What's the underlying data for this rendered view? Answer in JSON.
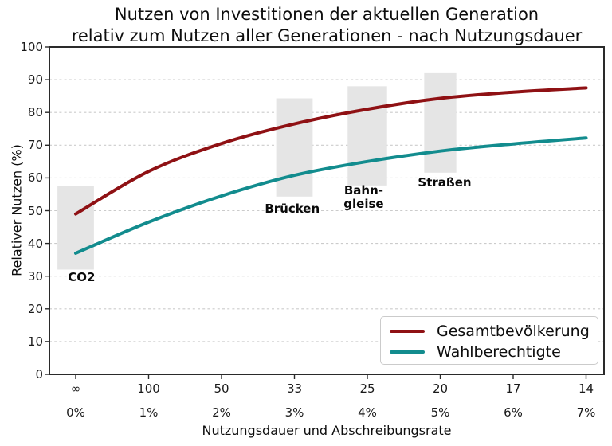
{
  "figure": {
    "title_line1": "Nutzen von Investitionen der aktuellen Generation",
    "title_line2": "relativ zum Nutzen aller Generationen - nach Nutzungsdauer"
  },
  "chart_data": {
    "type": "line",
    "title": "Nutzen von Investitionen der aktuellen Generation relativ zum Nutzen aller Generationen - nach Nutzungsdauer",
    "xlabel": "Nutzungsdauer und Abschreibungsrate",
    "ylabel": "Relativer Nutzen (%)",
    "x_axis": {
      "tick_rates_percent": [
        0,
        1,
        2,
        3,
        4,
        5,
        6,
        7
      ],
      "tick_labels_duration": [
        "∞",
        "100",
        "50",
        "33",
        "25",
        "20",
        "17",
        "14"
      ],
      "tick_labels_rate": [
        "0%",
        "1%",
        "2%",
        "3%",
        "4%",
        "5%",
        "6%",
        "7%"
      ]
    },
    "y_axis": {
      "min": 0,
      "max": 100,
      "tick_step": 10,
      "tick_values": [
        0,
        10,
        20,
        30,
        40,
        50,
        60,
        70,
        80,
        90,
        100
      ],
      "tick_labels": [
        "0",
        "10",
        "20",
        "30",
        "40",
        "50",
        "60",
        "70",
        "80",
        "90",
        "100"
      ]
    },
    "grid": {
      "horizontal": true,
      "style": "dashed",
      "color": "#cbcbcb"
    },
    "series": [
      {
        "name": "Gesamtbevölkerung",
        "color": "#8f1114",
        "x_rates_percent": [
          0,
          1,
          2,
          3,
          4,
          5,
          6,
          7
        ],
        "values": [
          49,
          62,
          70.5,
          76.5,
          81,
          84.3,
          86.2,
          87.5
        ]
      },
      {
        "name": "Wahlberechtigte",
        "color": "#128c8e",
        "x_rates_percent": [
          0,
          1,
          2,
          3,
          4,
          5,
          6,
          7
        ],
        "values": [
          37,
          46.5,
          54.5,
          60.8,
          65,
          68.2,
          70.4,
          72.2
        ]
      }
    ],
    "bands": [
      {
        "id": "co2",
        "lines": [
          "CO2"
        ],
        "center_rate": 0,
        "halfwidth_rate": 0.25,
        "y_min": 32,
        "y_max": 57.5,
        "label_center_rate": 0.08,
        "label_center_value": 29.5
      },
      {
        "id": "bruecken",
        "lines": [
          "Brücken"
        ],
        "center_rate": 3,
        "halfwidth_rate": 0.25,
        "y_min": 54.3,
        "y_max": 84.3,
        "label_center_rate": 2.97,
        "label_center_value": 50.5
      },
      {
        "id": "bahngleise",
        "lines": [
          "Bahn-",
          "gleise"
        ],
        "center_rate": 4,
        "halfwidth_rate": 0.27,
        "y_min": 57.7,
        "y_max": 88,
        "label_center_rate": 3.95,
        "label_center_value": 54
      },
      {
        "id": "strassen",
        "lines": [
          "Straßen"
        ],
        "center_rate": 5,
        "halfwidth_rate": 0.22,
        "y_min": 61.6,
        "y_max": 92,
        "label_center_rate": 5.06,
        "label_center_value": 58.5
      }
    ],
    "band_color": "#e5e5e5",
    "legend": {
      "position": "lower right",
      "entries": [
        "Gesamtbevölkerung",
        "Wahlberechtigte"
      ]
    },
    "spine_color": "#2a2a2a"
  }
}
